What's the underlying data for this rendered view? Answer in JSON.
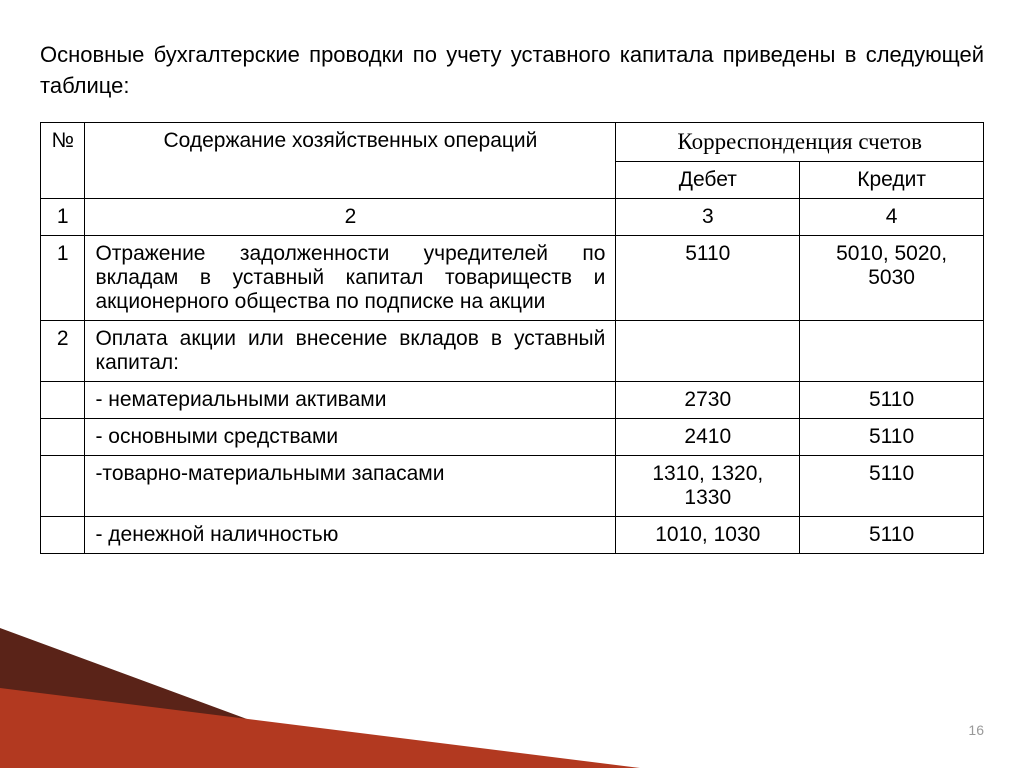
{
  "intro": "Основные бухгалтерские проводки по учету уставного капитала приведены в следующей таблице:",
  "headers": {
    "num": "№",
    "content": "Содержание хозяйственных операций",
    "corr": "Корреспонденция счетов",
    "debit": "Дебет",
    "credit": "Кредит"
  },
  "numhead": {
    "c1": "1",
    "c2": "2",
    "c3": "3",
    "c4": "4"
  },
  "rows": [
    {
      "num": "1",
      "content": "Отражение задолженности учредителей по вкладам в уставный капитал товариществ и акционерного общества по подписке на акции",
      "debit": "5110",
      "credit": "5010, 5020, 5030"
    },
    {
      "num": "2",
      "content": "Оплата акции или внесение вкладов в уставный капитал:",
      "debit": "",
      "credit": ""
    },
    {
      "num": "",
      "content": "- нематериальными активами",
      "debit": "2730",
      "credit": "5110"
    },
    {
      "num": "",
      "content": "- основными средствами",
      "debit": "2410",
      "credit": "5110"
    },
    {
      "num": "",
      "content": "-товарно-материальными запасами",
      "debit": "1310, 1320, 1330",
      "credit": "5110"
    },
    {
      "num": "",
      "content": "- денежной наличностью",
      "debit": "1010, 1030",
      "credit": "5110"
    }
  ],
  "pagenum": "16",
  "colors": {
    "dark": "#5a2318",
    "red": "#b23920"
  }
}
